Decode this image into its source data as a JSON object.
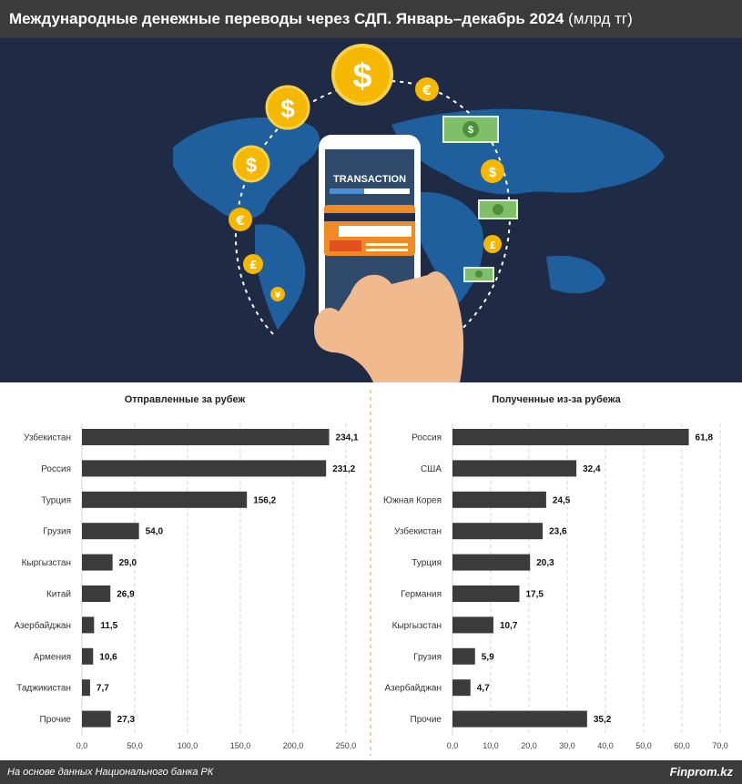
{
  "header": {
    "title": "Международные денежные переводы через СДП. Январь–декабрь 2024",
    "unit": "(млрд тг)"
  },
  "illustration": {
    "screen_label": "TRANSACTION",
    "colors": {
      "background": "#1f2a44",
      "map": "#1f5f9e",
      "coin": "#f5b700",
      "bill": "#7fbf6a",
      "hand": "#f1b98e",
      "card": "#f08a24"
    }
  },
  "chart_data": [
    {
      "type": "bar",
      "orientation": "horizontal",
      "title": "Отправленные за рубеж",
      "categories": [
        "Узбекистан",
        "Россия",
        "Турция",
        "Грузия",
        "Кыргызстан",
        "Китай",
        "Азербайджан",
        "Армения",
        "Таджикистан",
        "Прочие"
      ],
      "values": [
        234.1,
        231.2,
        156.2,
        54.0,
        29.0,
        26.9,
        11.5,
        10.6,
        7.7,
        27.3
      ],
      "value_labels": [
        "234,1",
        "231,2",
        "156,2",
        "54,0",
        "29,0",
        "26,9",
        "11,5",
        "10,6",
        "7,7",
        "27,3"
      ],
      "xlim": [
        0,
        250
      ],
      "ticks": [
        0,
        50,
        100,
        150,
        200,
        250
      ],
      "tick_labels": [
        "0,0",
        "50,0",
        "100,0",
        "150,0",
        "200,0",
        "250,0"
      ],
      "grid": true,
      "bar_color": "#3b3b3b"
    },
    {
      "type": "bar",
      "orientation": "horizontal",
      "title": "Полученные из-за рубежа",
      "categories": [
        "Россия",
        "США",
        "Южная Корея",
        "Узбекистан",
        "Турция",
        "Германия",
        "Кыргызстан",
        "Грузия",
        "Азербайджан",
        "Прочие"
      ],
      "values": [
        61.8,
        32.4,
        24.5,
        23.6,
        20.3,
        17.5,
        10.7,
        5.9,
        4.7,
        35.2
      ],
      "value_labels": [
        "61,8",
        "32,4",
        "24,5",
        "23,6",
        "20,3",
        "17,5",
        "10,7",
        "5,9",
        "4,7",
        "35,2"
      ],
      "xlim": [
        0,
        70
      ],
      "ticks": [
        0,
        10,
        20,
        30,
        40,
        50,
        60,
        70
      ],
      "tick_labels": [
        "0,0",
        "10,0",
        "20,0",
        "30,0",
        "40,0",
        "50,0",
        "60,0",
        "70,0"
      ],
      "grid": true,
      "bar_color": "#3b3b3b"
    }
  ],
  "footer": {
    "source": "На основе данных Национального банка РК",
    "brand": "Finprom.kz"
  }
}
